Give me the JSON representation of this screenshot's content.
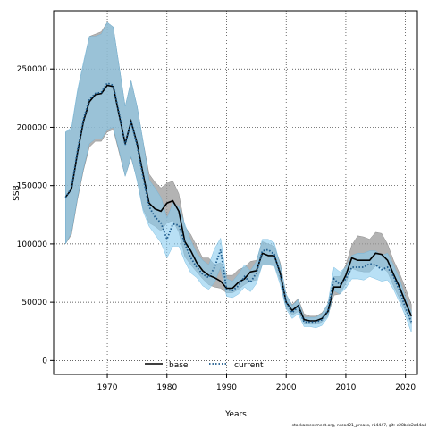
{
  "chart_data": {
    "type": "line",
    "ylabel": "SSB",
    "xlabel": "Years",
    "xlim": [
      1961,
      2022
    ],
    "ylim": [
      -12000,
      300000
    ],
    "x_ticks": [
      1970,
      1980,
      1990,
      2000,
      2010,
      2020
    ],
    "y_ticks": [
      0,
      50000,
      100000,
      150000,
      200000,
      250000
    ],
    "grid": true,
    "legend_position": "bottom",
    "credit": "stockassessment.org, nscod21_preass, r14447, git: c28bdc2a44ad",
    "colors": {
      "base": "#000000",
      "current": "#1c5a8c",
      "base_band": "#9a9a9a",
      "current_band": "#88ccee",
      "overlap_band": "#8fb1c2"
    },
    "series": [
      {
        "name": "base",
        "style": "solid",
        "x": [
          1963,
          1964,
          1965,
          1966,
          1967,
          1968,
          1969,
          1970,
          1971,
          1972,
          1973,
          1974,
          1975,
          1976,
          1977,
          1978,
          1979,
          1980,
          1981,
          1982,
          1983,
          1984,
          1985,
          1986,
          1987,
          1988,
          1989,
          1990,
          1991,
          1992,
          1993,
          1994,
          1995,
          1996,
          1997,
          1998,
          1999,
          2000,
          2001,
          2002,
          2003,
          2004,
          2005,
          2006,
          2007,
          2008,
          2009,
          2010,
          2011,
          2012,
          2013,
          2014,
          2015,
          2016,
          2017,
          2018,
          2019,
          2020,
          2021
        ],
        "y": [
          140000,
          147000,
          178000,
          205000,
          222000,
          228000,
          229000,
          236000,
          235000,
          210000,
          186000,
          205000,
          186000,
          160000,
          135000,
          130000,
          128000,
          135000,
          137000,
          128000,
          102000,
          94000,
          84000,
          77000,
          73000,
          71000,
          68000,
          62000,
          62000,
          67000,
          70000,
          76000,
          77000,
          92000,
          90000,
          90000,
          75000,
          50000,
          43000,
          47000,
          35000,
          34000,
          34000,
          36000,
          42000,
          63000,
          63000,
          73000,
          88000,
          86000,
          86000,
          86000,
          92000,
          91000,
          86000,
          74000,
          63000,
          50000,
          38000
        ],
        "low": [
          100000,
          108000,
          138000,
          163000,
          183000,
          188000,
          188000,
          196000,
          198000,
          178000,
          158000,
          174000,
          155000,
          130000,
          118000,
          115000,
          111000,
          118000,
          120000,
          110000,
          89000,
          82000,
          76000,
          70000,
          65000,
          63000,
          62000,
          58000,
          58000,
          61000,
          65000,
          68000,
          69000,
          82000,
          82000,
          82000,
          68000,
          45000,
          39000,
          42000,
          32000,
          31000,
          31000,
          33000,
          38000,
          56000,
          57000,
          66000,
          79000,
          77000,
          76000,
          76000,
          81000,
          80000,
          76000,
          64000,
          53000,
          42000,
          31000
        ],
        "high": [
          196000,
          198000,
          230000,
          254000,
          278000,
          280000,
          282000,
          290000,
          286000,
          252000,
          218000,
          240000,
          218000,
          188000,
          160000,
          153000,
          148000,
          152000,
          154000,
          143000,
          115000,
          108000,
          98000,
          88000,
          88000,
          82000,
          84000,
          73000,
          73000,
          78000,
          80000,
          85000,
          86000,
          102000,
          100000,
          98000,
          84000,
          56000,
          48000,
          53000,
          40000,
          38000,
          38000,
          41000,
          48000,
          72000,
          72000,
          82000,
          99000,
          107000,
          106000,
          104000,
          110000,
          109000,
          100000,
          86000,
          75000,
          62000,
          48000
        ]
      },
      {
        "name": "current",
        "style": "dotted",
        "x": [
          1963,
          1964,
          1965,
          1966,
          1967,
          1968,
          1969,
          1970,
          1971,
          1972,
          1973,
          1974,
          1975,
          1976,
          1977,
          1978,
          1979,
          1980,
          1981,
          1982,
          1983,
          1984,
          1985,
          1986,
          1987,
          1988,
          1989,
          1990,
          1991,
          1992,
          1993,
          1994,
          1995,
          1996,
          1997,
          1998,
          1999,
          2000,
          2001,
          2002,
          2003,
          2004,
          2005,
          2006,
          2007,
          2008,
          2009,
          2010,
          2011,
          2012,
          2013,
          2014,
          2015,
          2016,
          2017,
          2018,
          2019,
          2020,
          2021
        ],
        "y": [
          140000,
          148000,
          180000,
          207000,
          224000,
          229000,
          230000,
          238000,
          236000,
          212000,
          185000,
          205000,
          184000,
          157000,
          132000,
          123000,
          118000,
          104000,
          117000,
          116000,
          100000,
          88000,
          80000,
          74000,
          71000,
          80000,
          95000,
          61000,
          60000,
          64000,
          72000,
          67000,
          75000,
          94000,
          95000,
          91000,
          73000,
          50000,
          41000,
          46000,
          33000,
          33000,
          33000,
          35000,
          43000,
          70000,
          65000,
          70000,
          80000,
          80000,
          80000,
          83000,
          82000,
          78000,
          80000,
          72000,
          60000,
          45000,
          33000
        ],
        "low": [
          100000,
          110000,
          140000,
          165000,
          186000,
          190000,
          190000,
          198000,
          200000,
          180000,
          158000,
          175000,
          154000,
          128000,
          115000,
          108000,
          101000,
          88000,
          98000,
          98000,
          85000,
          75000,
          71000,
          64000,
          61000,
          67000,
          80000,
          55000,
          54000,
          57000,
          63000,
          59000,
          66000,
          82000,
          82000,
          81000,
          65000,
          44000,
          36000,
          40000,
          29000,
          29000,
          28000,
          30000,
          37000,
          60000,
          57000,
          62000,
          70000,
          70000,
          69000,
          72000,
          70000,
          68000,
          69000,
          61000,
          50000,
          38000,
          24000
        ],
        "high": [
          196000,
          200000,
          232000,
          256000,
          278000,
          278000,
          280000,
          290000,
          286000,
          252000,
          218000,
          240000,
          218000,
          188000,
          155000,
          148000,
          140000,
          122000,
          135000,
          132000,
          117000,
          103000,
          92000,
          86000,
          82000,
          96000,
          105000,
          70000,
          68000,
          74000,
          82000,
          77000,
          85000,
          104000,
          104000,
          101000,
          82000,
          57000,
          47000,
          52000,
          37000,
          37000,
          37000,
          40000,
          49000,
          80000,
          76000,
          80000,
          90000,
          92000,
          92000,
          94000,
          94000,
          90000,
          92000,
          82000,
          70000,
          54000,
          42000
        ]
      }
    ]
  }
}
